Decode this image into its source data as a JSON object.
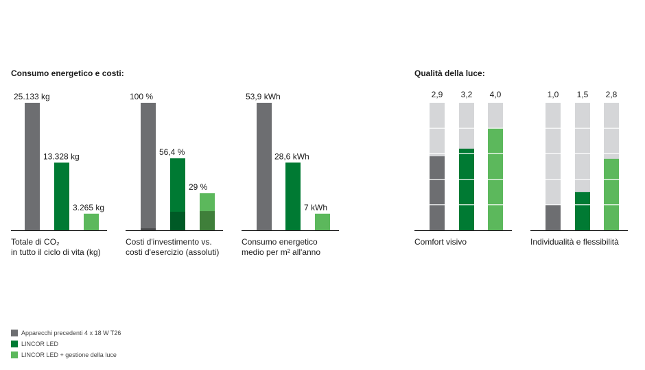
{
  "sections": {
    "left_title": "Consumo energetico e costi:",
    "right_title": "Qualità della luce:"
  },
  "colors": {
    "grey": "#6d6e71",
    "dark_green": "#007a33",
    "light_green": "#5cb85c",
    "scale_bg": "#d5d6d8",
    "dark_green_shade": "#005a26",
    "light_green_shade": "#3f7f3a",
    "grey_shade": "#4a4b4d"
  },
  "legend": {
    "items": [
      {
        "label": "Apparecchi precedenti 4 x 18 W T26",
        "color": "#6d6e71"
      },
      {
        "label": "LINCOR LED",
        "color": "#007a33"
      },
      {
        "label": "LINCOR LED + gestione della luce",
        "color": "#5cb85c"
      }
    ]
  },
  "chart_data": [
    {
      "type": "bar",
      "caption": "Totale di CO₂\nin tutto il ciclo di vita (kg)",
      "values": [
        25133,
        13328,
        3265
      ],
      "labels": [
        "25.133 kg",
        "13.328 kg",
        "3.265 kg"
      ],
      "ylim": [
        0,
        25133
      ]
    },
    {
      "type": "bar",
      "caption": "Costi d'investimento vs.\ncosti d'esercizio (assoluti)",
      "values": [
        100,
        56.4,
        29
      ],
      "labels": [
        "100 %",
        "56,4 %",
        "29 %"
      ],
      "investment_share": [
        1.5,
        14.5,
        15
      ],
      "ylim": [
        0,
        100
      ]
    },
    {
      "type": "bar",
      "caption": "Consumo energetico\nmedio per m² all'anno",
      "values": [
        53.9,
        28.6,
        7
      ],
      "labels": [
        "53,9 kWh",
        "28,6 kWh",
        "7 kWh"
      ],
      "ylim": [
        0,
        53.9
      ]
    },
    {
      "type": "bar",
      "caption": "Comfort visivo",
      "values": [
        2.9,
        3.2,
        4.0
      ],
      "labels": [
        "2,9",
        "3,2",
        "4,0"
      ],
      "ylim": [
        0,
        5
      ],
      "scale_steps": 5
    },
    {
      "type": "bar",
      "caption": "Individualità e flessibilità",
      "values": [
        1.0,
        1.5,
        2.8
      ],
      "labels": [
        "1,0",
        "1,5",
        "2,8"
      ],
      "ylim": [
        0,
        5
      ],
      "scale_steps": 5
    }
  ]
}
